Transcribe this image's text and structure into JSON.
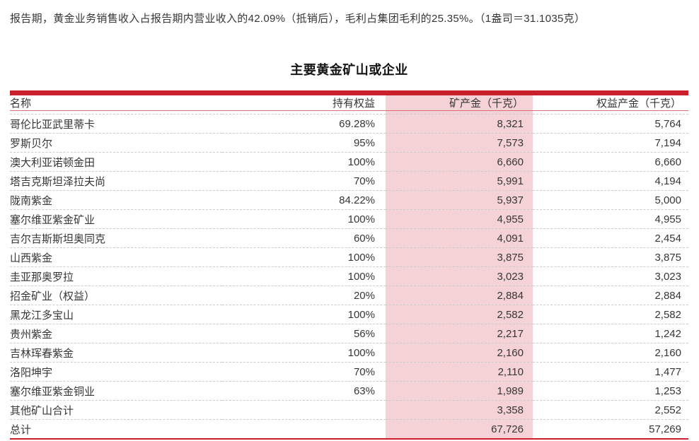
{
  "intro": "报告期，黄金业务销售收入占报告期内营业收入的42.09%（抵销后），毛利占集团毛利的25.35%。（1盎司＝31.1035克）",
  "table_title": "主要黄金矿山或企业",
  "table": {
    "columns": [
      "名称",
      "持有权益",
      "矿产金（千克）",
      "权益产金（千克）"
    ],
    "rows": [
      [
        "哥伦比亚武里蒂卡",
        "69.28%",
        "8,321",
        "5,764"
      ],
      [
        "罗斯贝尔",
        "95%",
        "7,573",
        "7,194"
      ],
      [
        "澳大利亚诺顿金田",
        "100%",
        "6,660",
        "6,660"
      ],
      [
        "塔吉克斯坦泽拉夫尚",
        "70%",
        "5,991",
        "4,194"
      ],
      [
        "陇南紫金",
        "84.22%",
        "5,937",
        "5,000"
      ],
      [
        "塞尔维亚紫金矿业",
        "100%",
        "4,955",
        "4,955"
      ],
      [
        "吉尔吉斯斯坦奥同克",
        "60%",
        "4,091",
        "2,454"
      ],
      [
        "山西紫金",
        "100%",
        "3,875",
        "3,875"
      ],
      [
        "圭亚那奥罗拉",
        "100%",
        "3,023",
        "3,023"
      ],
      [
        "招金矿业（权益）",
        "20%",
        "2,884",
        "2,884"
      ],
      [
        "黑龙江多宝山",
        "100%",
        "2,582",
        "2,582"
      ],
      [
        "贵州紫金",
        "56%",
        "2,217",
        "1,242"
      ],
      [
        "吉林珲春紫金",
        "100%",
        "2,160",
        "2,160"
      ],
      [
        "洛阳坤宇",
        "70%",
        "2,110",
        "1,477"
      ],
      [
        "塞尔维亚紫金铜业",
        "63%",
        "1,989",
        "1,253"
      ],
      [
        "其他矿山合计",
        "",
        "3,358",
        "2,552"
      ],
      [
        "总计",
        "",
        "67,726",
        "57,269"
      ]
    ]
  },
  "colors": {
    "accent_red": "#c9202c",
    "highlight_pink": "#f5d2d5",
    "header_rule_red": "#d96b77",
    "dash_grey": "#cccccc",
    "text": "#363636"
  }
}
